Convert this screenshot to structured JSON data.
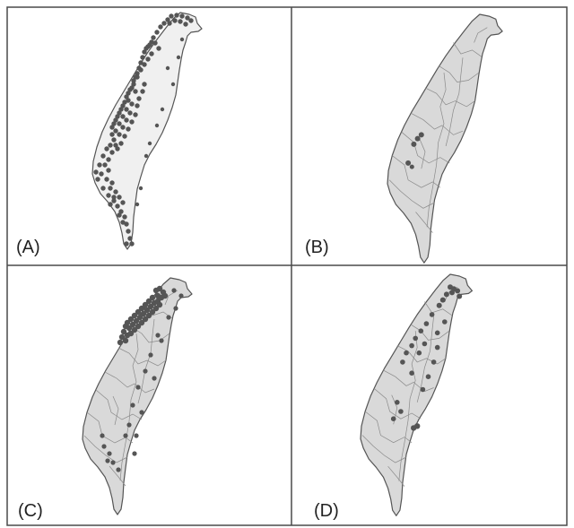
{
  "panels": [
    {
      "label": "(A)",
      "style": "outline-only",
      "borders": false
    },
    {
      "label": "(B)",
      "style": "districts",
      "borders": true
    },
    {
      "label": "(C)",
      "style": "districts",
      "borders": true
    },
    {
      "label": "(D)",
      "style": "districts",
      "borders": true
    }
  ],
  "colors": {
    "frame": "#4a4a4a",
    "land_plain": "#f0f0f0",
    "land_district": "#d9d9d9",
    "coast": "#555555",
    "district_line": "#8a8a8a",
    "point": "#555555",
    "label_text": "#222222"
  }
}
